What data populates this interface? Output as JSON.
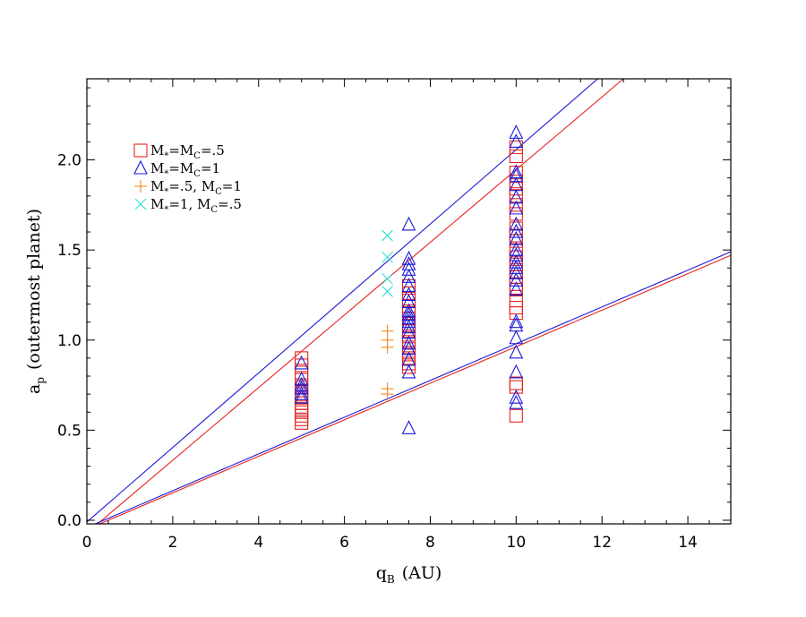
{
  "chart_data": {
    "type": "scatter",
    "title": "",
    "xlabel": "q",
    "xlabel_sub": "B",
    "xlabel_unit": "(AU)",
    "ylabel": "a",
    "ylabel_sub": "p",
    "ylabel_rest": "(outermost planet)",
    "xlim": [
      0,
      15
    ],
    "ylim": [
      -0.02,
      2.45
    ],
    "xticks": [
      0,
      2,
      4,
      6,
      8,
      10,
      12,
      14
    ],
    "xtick_labels": [
      "0",
      "2",
      "4",
      "6",
      "8",
      "10",
      "12",
      "14"
    ],
    "yticks": [
      0.0,
      0.5,
      1.0,
      1.5,
      2.0
    ],
    "ytick_labels": [
      "0.0",
      "0.5",
      "1.0",
      "1.5",
      "2.0"
    ],
    "grid": false,
    "legend_position": "top-left",
    "series": [
      {
        "name": "M*=Mc=.5",
        "legend_label": {
          "a": "M",
          "a_sub": "*",
          "b": "=M",
          "b_sub": "C",
          "c": "=.5"
        },
        "marker": "square",
        "color": "#e8231f",
        "points": [
          [
            5,
            0.9
          ],
          [
            5,
            0.86
          ],
          [
            5,
            0.82
          ],
          [
            5,
            0.78
          ],
          [
            5,
            0.74
          ],
          [
            5,
            0.72
          ],
          [
            5,
            0.7
          ],
          [
            5,
            0.68
          ],
          [
            5,
            0.65
          ],
          [
            5,
            0.62
          ],
          [
            5,
            0.6
          ],
          [
            5,
            0.58
          ],
          [
            5,
            0.56
          ],
          [
            5,
            0.54
          ],
          [
            7.5,
            1.3
          ],
          [
            7.5,
            1.26
          ],
          [
            7.5,
            1.22
          ],
          [
            7.5,
            1.19
          ],
          [
            7.5,
            1.16
          ],
          [
            7.5,
            1.12
          ],
          [
            7.5,
            1.08
          ],
          [
            7.5,
            1.05
          ],
          [
            7.5,
            1.02
          ],
          [
            7.5,
            0.99
          ],
          [
            7.5,
            0.96
          ],
          [
            7.5,
            0.93
          ],
          [
            7.5,
            0.9
          ],
          [
            7.5,
            0.87
          ],
          [
            7.5,
            0.85
          ],
          [
            10,
            2.07
          ],
          [
            10,
            2.02
          ],
          [
            10,
            1.93
          ],
          [
            10,
            1.88
          ],
          [
            10,
            1.84
          ],
          [
            10,
            1.8
          ],
          [
            10,
            1.75
          ],
          [
            10,
            1.7
          ],
          [
            10,
            1.62
          ],
          [
            10,
            1.58
          ],
          [
            10,
            1.55
          ],
          [
            10,
            1.5
          ],
          [
            10,
            1.46
          ],
          [
            10,
            1.42
          ],
          [
            10,
            1.38
          ],
          [
            10,
            1.35
          ],
          [
            10,
            1.31
          ],
          [
            10,
            1.28
          ],
          [
            10,
            1.22
          ],
          [
            10,
            1.18
          ],
          [
            10,
            1.15
          ],
          [
            10,
            0.76
          ],
          [
            10,
            0.74
          ],
          [
            10,
            0.58
          ]
        ]
      },
      {
        "name": "M*=Mc=1",
        "legend_label": {
          "a": "M",
          "a_sub": "*",
          "b": "=M",
          "b_sub": "C",
          "c": "=1"
        },
        "marker": "triangle",
        "color": "#1a1ad6",
        "points": [
          [
            5,
            0.87
          ],
          [
            5,
            0.78
          ],
          [
            5,
            0.75
          ],
          [
            5,
            0.73
          ],
          [
            5,
            0.7
          ],
          [
            5,
            0.68
          ],
          [
            7.5,
            1.64
          ],
          [
            7.5,
            1.45
          ],
          [
            7.5,
            1.42
          ],
          [
            7.5,
            1.39
          ],
          [
            7.5,
            1.35
          ],
          [
            7.5,
            1.3
          ],
          [
            7.5,
            1.25
          ],
          [
            7.5,
            1.21
          ],
          [
            7.5,
            1.16
          ],
          [
            7.5,
            1.14
          ],
          [
            7.5,
            1.12
          ],
          [
            7.5,
            1.1
          ],
          [
            7.5,
            1.07
          ],
          [
            7.5,
            1.04
          ],
          [
            7.5,
            0.98
          ],
          [
            7.5,
            0.95
          ],
          [
            7.5,
            0.89
          ],
          [
            7.5,
            0.82
          ],
          [
            7.5,
            0.51
          ],
          [
            10,
            2.15
          ],
          [
            10,
            2.1
          ],
          [
            10,
            1.93
          ],
          [
            10,
            1.91
          ],
          [
            10,
            1.86
          ],
          [
            10,
            1.79
          ],
          [
            10,
            1.73
          ],
          [
            10,
            1.64
          ],
          [
            10,
            1.6
          ],
          [
            10,
            1.56
          ],
          [
            10,
            1.5
          ],
          [
            10,
            1.47
          ],
          [
            10,
            1.43
          ],
          [
            10,
            1.4
          ],
          [
            10,
            1.37
          ],
          [
            10,
            1.33
          ],
          [
            10,
            1.28
          ],
          [
            10,
            1.1
          ],
          [
            10,
            1.08
          ],
          [
            10,
            1.01
          ],
          [
            10,
            0.93
          ],
          [
            10,
            0.82
          ],
          [
            10,
            0.68
          ],
          [
            10,
            0.65
          ]
        ]
      },
      {
        "name": "M*=.5, Mc=1",
        "legend_label": {
          "a": "M",
          "a_sub": "*",
          "b": "=.5,  M",
          "b_sub": "C",
          "c": "=1"
        },
        "marker": "plus",
        "color": "#f28c1f",
        "points": [
          [
            7,
            1.05
          ],
          [
            7,
            1.0
          ],
          [
            7,
            0.96
          ],
          [
            7,
            0.73
          ],
          [
            7,
            0.7
          ]
        ]
      },
      {
        "name": "M*=1, Mc=.5",
        "legend_label": {
          "a": "M",
          "a_sub": "*",
          "b": "=1,  M",
          "b_sub": "C",
          "c": "=.5"
        },
        "marker": "x",
        "color": "#2ee0d6",
        "points": [
          [
            7,
            1.58
          ],
          [
            7,
            1.46
          ],
          [
            7,
            1.34
          ],
          [
            7,
            1.27
          ]
        ]
      }
    ],
    "fit_lines": [
      {
        "color": "#1a1ad6",
        "x": [
          -0.1,
          11.9
        ],
        "y": [
          -0.03,
          2.45
        ]
      },
      {
        "color": "#e8231f",
        "x": [
          0.25,
          12.5
        ],
        "y": [
          -0.02,
          2.45
        ]
      },
      {
        "color": "#1a1ad6",
        "x": [
          0,
          15
        ],
        "y": [
          -0.04,
          1.49
        ]
      },
      {
        "color": "#e8231f",
        "x": [
          0.3,
          15
        ],
        "y": [
          -0.02,
          1.47
        ]
      }
    ]
  }
}
